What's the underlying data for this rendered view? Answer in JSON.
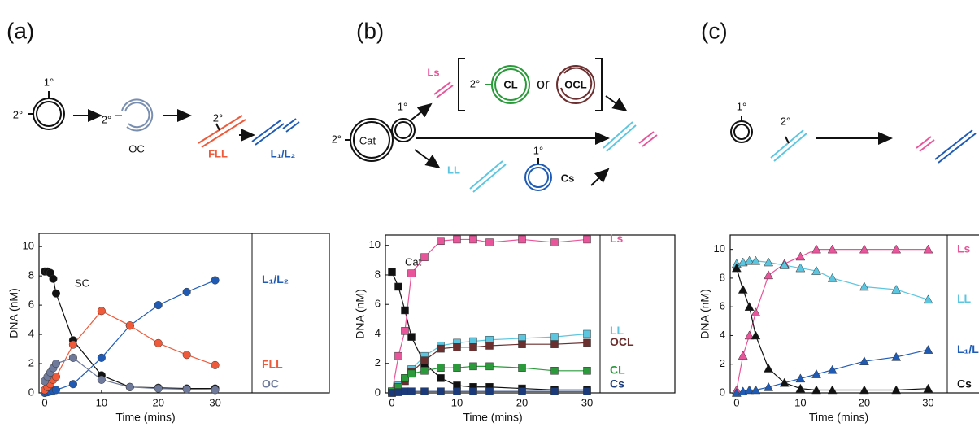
{
  "panels": [
    {
      "label": "(a)",
      "diagram": [
        "1°",
        "2°",
        "2°",
        "OC",
        "2°",
        "FLL",
        "L₁/L₂"
      ]
    },
    {
      "label": "(b)",
      "diagram": [
        "Ls",
        "2°",
        "CL",
        "or",
        "OCL",
        "1°",
        "2°",
        "Cat",
        "LL",
        "1°",
        "Cs"
      ]
    },
    {
      "label": "(c)",
      "diagram": [
        "1°",
        "2°"
      ]
    }
  ],
  "chart_data": [
    {
      "type": "line",
      "marker": "circle",
      "xlabel": "Time (mins)",
      "ylabel": "DNA (nM)",
      "x": [
        0,
        0.5,
        1,
        1.5,
        2,
        5,
        10,
        15,
        20,
        25,
        30
      ],
      "xlim": [
        -1,
        36.5
      ],
      "xticks": [
        0,
        10,
        20,
        30
      ],
      "ylim": [
        0,
        10.9
      ],
      "yticks": [
        0,
        2,
        4,
        6,
        8,
        10
      ],
      "series": [
        {
          "name": "SC",
          "color": "#111111",
          "values": [
            8.3,
            8.3,
            8.2,
            7.8,
            6.8,
            3.6,
            1.2,
            0.4,
            0.35,
            0.3,
            0.3
          ]
        },
        {
          "name": "L₁/L₂",
          "color": "#1f5bb5",
          "values": [
            0,
            0.05,
            0.1,
            0.15,
            0.2,
            0.6,
            2.4,
            4.6,
            6.0,
            6.9,
            7.7
          ]
        },
        {
          "name": "FLL",
          "color": "#ee5a3a",
          "values": [
            0.2,
            0.4,
            0.6,
            0.9,
            1.1,
            3.3,
            5.6,
            4.6,
            3.4,
            2.6,
            1.9
          ]
        },
        {
          "name": "OC",
          "color": "#6f7a9a",
          "values": [
            0.8,
            1.1,
            1.4,
            1.7,
            2.0,
            2.4,
            0.9,
            0.4,
            0.3,
            0.25,
            0.2
          ]
        }
      ]
    },
    {
      "type": "line",
      "marker": "square",
      "xlabel": "Time (mins)",
      "ylabel": "DNA (nM)",
      "x": [
        0,
        1,
        2,
        3,
        5,
        7.5,
        10,
        12.5,
        15,
        20,
        25,
        30
      ],
      "xlim": [
        -1,
        32
      ],
      "xticks": [
        0,
        10,
        20,
        30
      ],
      "ylim": [
        0,
        10.7
      ],
      "yticks": [
        0,
        2,
        4,
        6,
        8,
        10
      ],
      "series": [
        {
          "name": "Cat",
          "color": "#111111",
          "values": [
            8.2,
            7.2,
            5.6,
            3.8,
            2.0,
            1.0,
            0.5,
            0.4,
            0.4,
            0.3,
            0.2,
            0.2
          ]
        },
        {
          "name": "Ls",
          "color": "#e8559a",
          "values": [
            0,
            2.5,
            4.2,
            8.1,
            9.2,
            10.3,
            10.4,
            10.4,
            10.2,
            10.4,
            10.2,
            10.4
          ]
        },
        {
          "name": "LL",
          "color": "#5cc6e0",
          "values": [
            0.1,
            0.5,
            1.0,
            1.6,
            2.5,
            3.2,
            3.4,
            3.5,
            3.6,
            3.7,
            3.8,
            4.0
          ]
        },
        {
          "name": "OCL",
          "color": "#6b2f2f",
          "values": [
            0.1,
            0.4,
            0.8,
            1.4,
            2.2,
            3.0,
            3.1,
            3.1,
            3.2,
            3.3,
            3.3,
            3.4
          ]
        },
        {
          "name": "CL",
          "color": "#2a9a3a",
          "values": [
            0.1,
            0.4,
            1.0,
            1.3,
            1.5,
            1.7,
            1.7,
            1.8,
            1.8,
            1.7,
            1.5,
            1.5
          ]
        },
        {
          "name": "Cs",
          "color": "#1a3a7a",
          "values": [
            0,
            0.05,
            0.1,
            0.1,
            0.1,
            0.1,
            0.1,
            0.1,
            0.1,
            0.1,
            0.1,
            0.1
          ]
        }
      ]
    },
    {
      "type": "line",
      "marker": "triangle",
      "xlabel": "Time (mins)",
      "ylabel": "DNA (nM)",
      "x": [
        0,
        1,
        2,
        3,
        5,
        7.5,
        10,
        12.5,
        15,
        20,
        25,
        30
      ],
      "xlim": [
        -1,
        33
      ],
      "xticks": [
        0,
        10,
        20,
        30
      ],
      "ylim": [
        0,
        11
      ],
      "yticks": [
        0,
        2,
        4,
        6,
        8,
        10
      ],
      "series": [
        {
          "name": "Ls",
          "color": "#e8559a",
          "values": [
            0.2,
            2.6,
            4.0,
            5.6,
            8.2,
            9.0,
            9.5,
            10.0,
            10.0,
            10.0,
            10.0,
            10.0
          ]
        },
        {
          "name": "LL",
          "color": "#5cc6e0",
          "values": [
            9.0,
            9.1,
            9.2,
            9.2,
            9.1,
            8.9,
            8.7,
            8.5,
            8.0,
            7.4,
            7.2,
            6.5
          ]
        },
        {
          "name": "L₁/L",
          "color": "#1f5bb5",
          "values": [
            0,
            0.1,
            0.2,
            0.2,
            0.4,
            0.7,
            1.0,
            1.3,
            1.6,
            2.2,
            2.5,
            3.0
          ]
        },
        {
          "name": "Cs",
          "color": "#111111",
          "values": [
            8.7,
            7.2,
            6.0,
            4.0,
            1.7,
            0.7,
            0.3,
            0.2,
            0.2,
            0.2,
            0.2,
            0.3
          ]
        }
      ]
    }
  ]
}
